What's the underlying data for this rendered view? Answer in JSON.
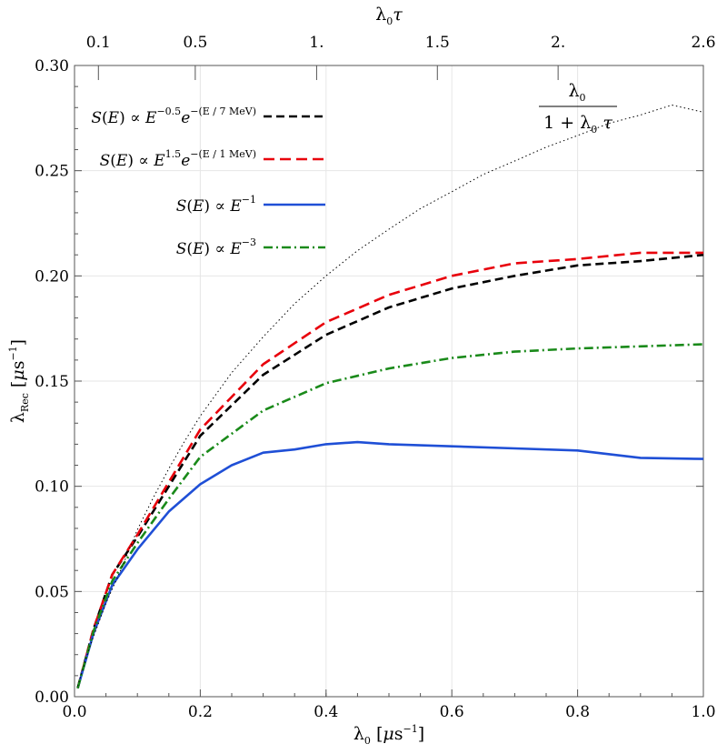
{
  "chart_data": {
    "type": "line",
    "title": "",
    "xlabel": "λ0 [μs^-1]",
    "ylabel": "λRec [μs^-1]",
    "top_xlabel": "λ0τ",
    "xlim": [
      0,
      1.0
    ],
    "ylim": [
      0,
      0.3
    ],
    "x_ticks": [
      "0.0",
      "0.2",
      "0.4",
      "0.6",
      "0.8",
      "1.0"
    ],
    "y_ticks": [
      "0.00",
      "0.05",
      "0.10",
      "0.15",
      "0.20",
      "0.25",
      "0.30"
    ],
    "top_ticks": [
      {
        "label": "0.1",
        "x": 0.038
      },
      {
        "label": "0.5",
        "x": 0.192
      },
      {
        "label": "1.",
        "x": 0.385
      },
      {
        "label": "1.5",
        "x": 0.577
      },
      {
        "label": "2.",
        "x": 0.769
      },
      {
        "label": "2.6",
        "x": 1.0
      }
    ],
    "grid": true,
    "legend_position": "top-left",
    "series": [
      {
        "name": "S(E) ∝ E^-0.5 e^-(E/7 MeV)",
        "color": "#000000",
        "dash": "9,5",
        "x": [
          0.005,
          0.03,
          0.06,
          0.1,
          0.15,
          0.2,
          0.3,
          0.4,
          0.5,
          0.6,
          0.7,
          0.8,
          0.9,
          1.0
        ],
        "y": [
          0.004,
          0.032,
          0.058,
          0.076,
          0.1,
          0.124,
          0.153,
          0.172,
          0.185,
          0.194,
          0.2,
          0.205,
          0.207,
          0.21
        ]
      },
      {
        "name": "S(E) ∝ E^1.5 e^-(E/1 MeV)",
        "color": "#e8000b",
        "dash": "12,6",
        "x": [
          0.005,
          0.03,
          0.06,
          0.1,
          0.15,
          0.2,
          0.3,
          0.4,
          0.5,
          0.6,
          0.7,
          0.8,
          0.9,
          1.0
        ],
        "y": [
          0.004,
          0.032,
          0.058,
          0.077,
          0.102,
          0.127,
          0.158,
          0.178,
          0.191,
          0.2,
          0.206,
          0.208,
          0.211,
          0.211
        ]
      },
      {
        "name": "S(E) ∝ E^-1",
        "color": "#1f4fd6",
        "dash": "",
        "x": [
          0.005,
          0.03,
          0.06,
          0.1,
          0.15,
          0.2,
          0.25,
          0.3,
          0.35,
          0.4,
          0.45,
          0.5,
          0.6,
          0.7,
          0.8,
          0.9,
          1.0
        ],
        "y": [
          0.004,
          0.03,
          0.053,
          0.07,
          0.088,
          0.101,
          0.11,
          0.116,
          0.1175,
          0.12,
          0.121,
          0.12,
          0.119,
          0.118,
          0.117,
          0.1135,
          0.113
        ]
      },
      {
        "name": "S(E) ∝ E^-3",
        "color": "#1a8a1a",
        "dash": "10,4,2,4",
        "x": [
          0.005,
          0.03,
          0.06,
          0.1,
          0.15,
          0.2,
          0.3,
          0.4,
          0.5,
          0.6,
          0.7,
          0.8,
          0.9,
          1.0
        ],
        "y": [
          0.004,
          0.031,
          0.055,
          0.073,
          0.094,
          0.114,
          0.136,
          0.149,
          0.156,
          0.161,
          0.164,
          0.1655,
          0.1665,
          0.1675
        ]
      },
      {
        "name": "λ0 / (1 + λ0 τ)",
        "color": "#000000",
        "dash": "1.5,3",
        "width": 1,
        "x": [
          0.005,
          0.025,
          0.05,
          0.075,
          0.1,
          0.125,
          0.15,
          0.175,
          0.2,
          0.25,
          0.3,
          0.35,
          0.4,
          0.45,
          0.5,
          0.55,
          0.6,
          0.65,
          0.7,
          0.75,
          0.8,
          0.85,
          0.9,
          0.95,
          1.0
        ],
        "y": [
          0.00499,
          0.0244,
          0.0444,
          0.0612,
          0.0794,
          0.0944,
          0.1084,
          0.1214,
          0.1334,
          0.154,
          0.171,
          0.1868,
          0.2,
          0.212,
          0.2222,
          0.232,
          0.24,
          0.2482,
          0.2546,
          0.2612,
          0.2667,
          0.2725,
          0.2765,
          0.2812,
          0.2778
        ]
      }
    ],
    "annotation": {
      "numerator": "λ0",
      "denominator": "1 + λ0 τ"
    }
  }
}
